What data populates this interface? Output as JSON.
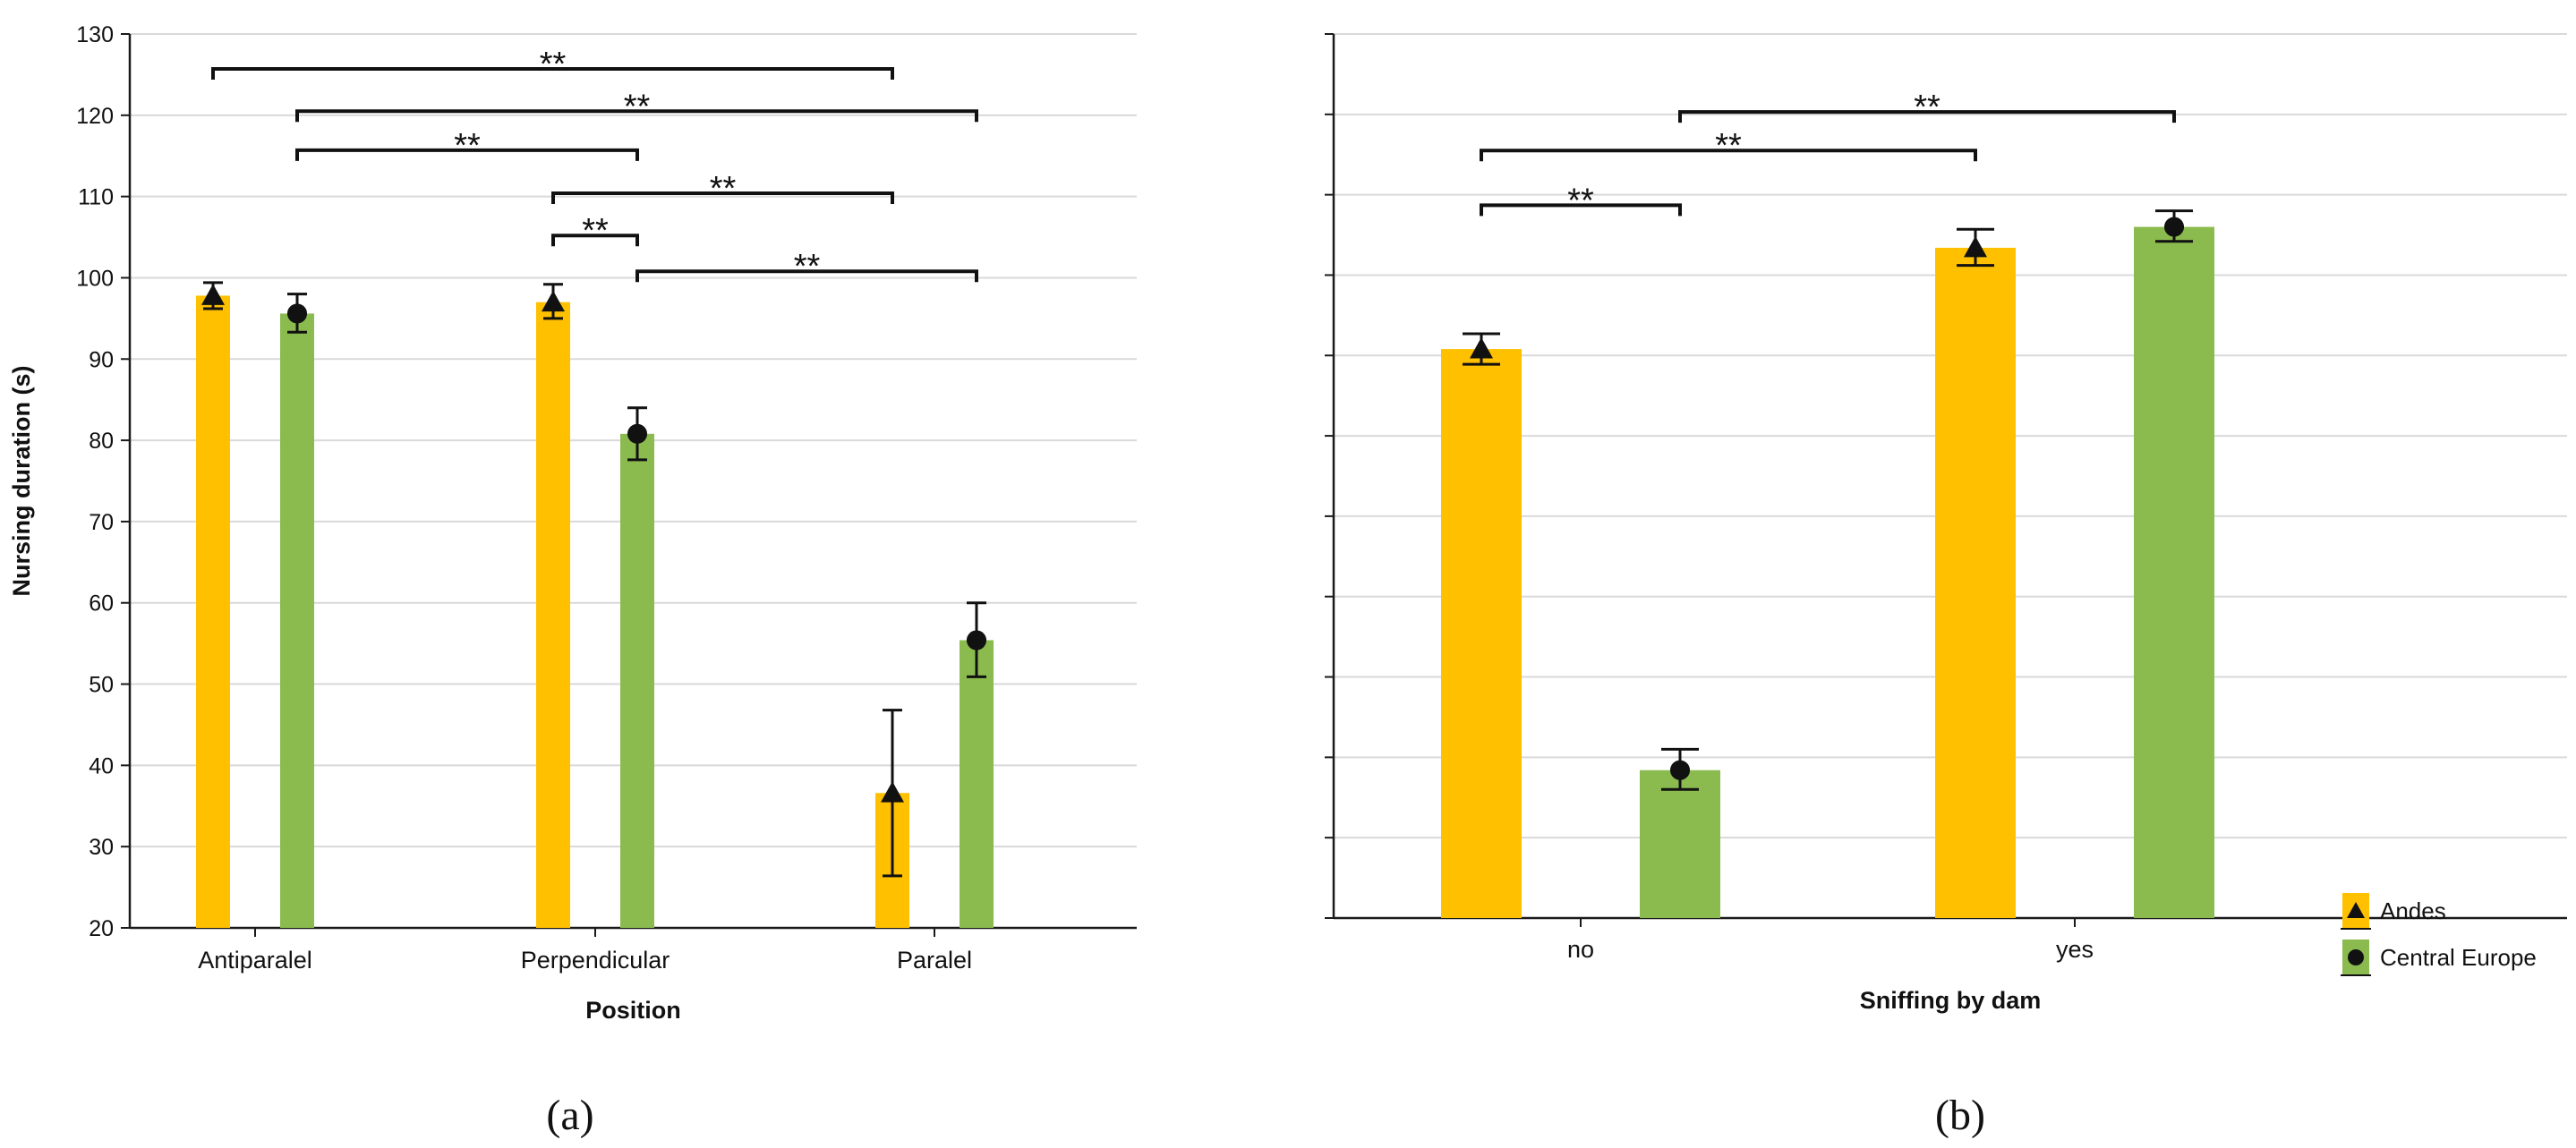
{
  "colors": {
    "andes": "#FFC000",
    "central_europe": "#8BBB4F",
    "grid": "#d9d9d9",
    "axis": "#1a1a1a",
    "ink": "#111111"
  },
  "legend": [
    {
      "key": "andes",
      "label": "Andes",
      "marker": "triangle"
    },
    {
      "key": "central_europe",
      "label": "Central Europe",
      "marker": "circle"
    }
  ],
  "chart_data": [
    {
      "type": "bar",
      "panel_label": "(a)",
      "xlabel": "Position",
      "ylabel": "Nursing duration (s)",
      "ylim": [
        20,
        130
      ],
      "yticks": [
        20,
        30,
        40,
        50,
        60,
        70,
        80,
        90,
        100,
        110,
        120,
        130
      ],
      "show_tick_labels": true,
      "grid": true,
      "categories": [
        "Antiparalel",
        "Perpendicular",
        "Paralel"
      ],
      "series": [
        {
          "name": "Andes",
          "key": "andes",
          "marker": "triangle",
          "values": [
            97.8,
            97.0,
            36.6
          ],
          "err_low": [
            96.2,
            95.0,
            26.4
          ],
          "err_high": [
            99.4,
            99.2,
            46.8
          ]
        },
        {
          "name": "Central Europe",
          "key": "central_europe",
          "marker": "circle",
          "values": [
            95.6,
            80.8,
            55.4
          ],
          "err_low": [
            93.3,
            77.6,
            50.9
          ],
          "err_high": [
            98.0,
            84.0,
            60.0
          ]
        }
      ],
      "significance": [
        {
          "from": [
            0,
            0
          ],
          "to": [
            2,
            0
          ],
          "y": 125.7,
          "label": "**"
        },
        {
          "from": [
            0,
            1
          ],
          "to": [
            2,
            1
          ],
          "y": 120.5,
          "label": "**"
        },
        {
          "from": [
            0,
            1
          ],
          "to": [
            1,
            1
          ],
          "y": 115.7,
          "label": "**"
        },
        {
          "from": [
            1,
            0
          ],
          "to": [
            2,
            0
          ],
          "y": 110.4,
          "label": "**"
        },
        {
          "from": [
            1,
            0
          ],
          "to": [
            1,
            1
          ],
          "y": 105.2,
          "label": "**"
        },
        {
          "from": [
            1,
            1
          ],
          "to": [
            2,
            1
          ],
          "y": 100.8,
          "label": "**"
        }
      ]
    },
    {
      "type": "bar",
      "panel_label": "(b)",
      "xlabel": "Sniffing by dam",
      "ylabel": "",
      "ylim": [
        20,
        130
      ],
      "yticks": [
        20,
        30,
        40,
        50,
        60,
        70,
        80,
        90,
        100,
        110,
        120,
        130
      ],
      "show_tick_labels": false,
      "grid": true,
      "legend": "right-bottom",
      "categories": [
        "no",
        "yes"
      ],
      "series": [
        {
          "name": "Andes",
          "key": "andes",
          "marker": "triangle",
          "values": [
            90.8,
            103.4
          ],
          "err_low": [
            88.9,
            101.2
          ],
          "err_high": [
            92.7,
            105.7
          ]
        },
        {
          "name": "Central Europe",
          "key": "central_europe",
          "marker": "circle",
          "values": [
            38.4,
            106.0
          ],
          "err_low": [
            36.0,
            104.2
          ],
          "err_high": [
            41.0,
            108.0
          ]
        }
      ],
      "significance": [
        {
          "from": [
            0,
            1
          ],
          "to": [
            1,
            1
          ],
          "y": 120.3,
          "label": "**"
        },
        {
          "from": [
            0,
            0
          ],
          "to": [
            1,
            0
          ],
          "y": 115.5,
          "label": "**"
        },
        {
          "from": [
            0,
            0
          ],
          "to": [
            0,
            1
          ],
          "y": 108.7,
          "label": "**"
        }
      ]
    }
  ]
}
